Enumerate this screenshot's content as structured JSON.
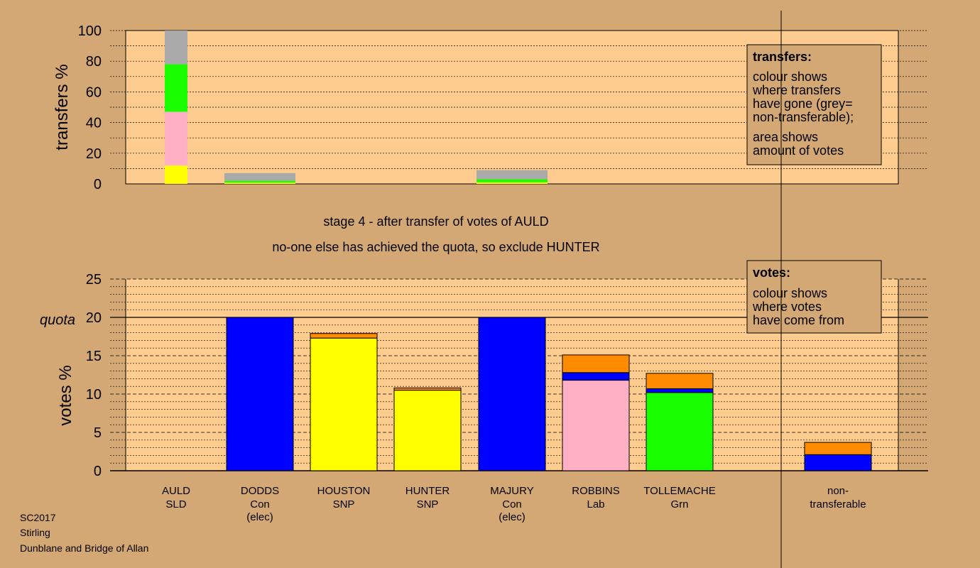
{
  "colors": {
    "background": "#d4a875",
    "plot_bg": "#ffcc8f",
    "box_bg": "#d4a875",
    "SNP": "#ffff00",
    "Lab": "#ffb0c4",
    "Grn": "#1aff00",
    "Con": "#0000ff",
    "SLD": "#ff8c00",
    "non_transferable": "#aaaaaa"
  },
  "stage_text": "stage 4 - after transfer of votes of AULD",
  "status_text": "no-one else has achieved the quota, so exclude HUNTER",
  "footer": {
    "line1": "SC2017",
    "line2": "Stirling",
    "line3": "Dunblane and Bridge of Allan"
  },
  "transfers_box": {
    "title": "transfers:",
    "lines1": [
      "colour shows",
      "where transfers",
      "have gone (grey=",
      "non-transferable);"
    ],
    "lines2": [
      "area shows",
      "amount of votes"
    ]
  },
  "votes_box": {
    "title": "votes:",
    "lines": [
      "colour shows",
      "where votes",
      "have come from"
    ]
  },
  "chart_data": [
    {
      "type": "bar",
      "stacked": true,
      "ylabel": "transfers %",
      "ylim": [
        0,
        100
      ],
      "yticks": [
        0,
        20,
        40,
        60,
        80,
        100
      ],
      "categories": [
        "AULD",
        "DODDS",
        "HOUSTON",
        "HUNTER",
        "MAJURY",
        "ROBBINS",
        "TOLLEMACHE",
        "non-transferable"
      ],
      "bars": [
        {
          "category": "AULD",
          "segments": [
            {
              "party": "SNP",
              "value": 12
            },
            {
              "party": "Lab",
              "value": 35
            },
            {
              "party": "Grn",
              "value": 31
            },
            {
              "party": "non_transferable",
              "value": 22
            }
          ]
        },
        {
          "category": "DODDS",
          "segments": [
            {
              "party": "SNP",
              "value": 0.8
            },
            {
              "party": "Grn",
              "value": 1.2
            },
            {
              "party": "non_transferable",
              "value": 5
            }
          ]
        },
        {
          "category": "MAJURY",
          "segments": [
            {
              "party": "SNP",
              "value": 1
            },
            {
              "party": "Grn",
              "value": 2
            },
            {
              "party": "non_transferable",
              "value": 6
            }
          ]
        }
      ]
    },
    {
      "type": "bar",
      "stacked": true,
      "ylabel": "votes %",
      "ylim": [
        0,
        25
      ],
      "yticks": [
        0,
        5,
        10,
        15,
        20,
        25
      ],
      "quota": 20,
      "quota_label": "quota",
      "candidates": [
        {
          "name": "AULD",
          "party": "SLD",
          "note": "",
          "segments": []
        },
        {
          "name": "DODDS",
          "party": "Con",
          "note": "(elec)",
          "segments": [
            {
              "party": "Con",
              "value": 20
            }
          ]
        },
        {
          "name": "HOUSTON",
          "party": "SNP",
          "note": "",
          "segments": [
            {
              "party": "SNP",
              "value": 17.3
            },
            {
              "party": "SLD",
              "value": 0.6
            }
          ]
        },
        {
          "name": "HUNTER",
          "party": "SNP",
          "note": "",
          "segments": [
            {
              "party": "SNP",
              "value": 10.5
            },
            {
              "party": "SLD",
              "value": 0.3
            }
          ]
        },
        {
          "name": "MAJURY",
          "party": "Con",
          "note": "(elec)",
          "segments": [
            {
              "party": "Con",
              "value": 20
            }
          ]
        },
        {
          "name": "ROBBINS",
          "party": "Lab",
          "note": "",
          "segments": [
            {
              "party": "Lab",
              "value": 11.8
            },
            {
              "party": "Con",
              "value": 1
            },
            {
              "party": "SLD",
              "value": 2.3
            }
          ]
        },
        {
          "name": "TOLLEMACHE",
          "party": "Grn",
          "note": "",
          "segments": [
            {
              "party": "Grn",
              "value": 10.2
            },
            {
              "party": "Con",
              "value": 0.5
            },
            {
              "party": "SLD",
              "value": 2
            }
          ]
        }
      ],
      "non_transferable": {
        "label1": "non-",
        "label2": "transferable",
        "segments": [
          {
            "party": "Con",
            "value": 2.1
          },
          {
            "party": "SLD",
            "value": 1.6
          }
        ]
      }
    }
  ]
}
